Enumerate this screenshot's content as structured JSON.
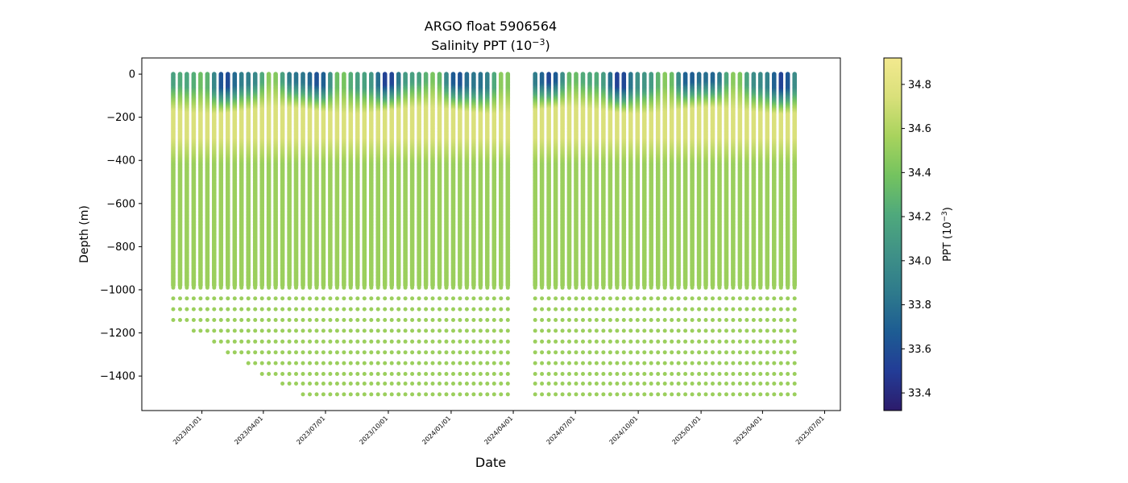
{
  "chart_data": {
    "type": "scatter",
    "title": "ARGO float 5906564",
    "subtitle": "Salinity PPT (10−3)",
    "subtitle_parts": {
      "prefix": "Salinity PPT (10",
      "exponent": "−3",
      "suffix": ")"
    },
    "xlabel": "Date",
    "ylabel": "Depth (m)",
    "ylim": [
      -1560,
      75
    ],
    "y_ticks": [
      0,
      -200,
      -400,
      -600,
      -800,
      -1000,
      -1200,
      -1400
    ],
    "y_tick_labels": [
      "0",
      "−200",
      "−400",
      "−600",
      "−800",
      "−1000",
      "−1200",
      "−1400"
    ],
    "x_range": [
      "2022-10-05",
      "2025-07-24"
    ],
    "x_ticks": [
      "2023-01-01",
      "2023-04-01",
      "2023-07-01",
      "2023-10-01",
      "2024-01-01",
      "2024-04-01",
      "2024-07-01",
      "2024-10-01",
      "2025-01-01",
      "2025-04-01",
      "2025-07-01"
    ],
    "x_tick_labels": [
      "2023/01/01",
      "2023/04/01",
      "2023/07/01",
      "2023/10/01",
      "2024/01/01",
      "2024/04/01",
      "2024/07/01",
      "2024/10/01",
      "2025/01/01",
      "2025/04/01",
      "2025/07/01"
    ],
    "profile_start": "2022-11-20",
    "profile_interval_days": 10,
    "profile_count": 92,
    "gap_profiles": [
      50,
      51,
      52
    ],
    "continuous_bottom_m": -980,
    "deep_sample_depths": [
      -990,
      -1040,
      -1090,
      -1140,
      -1190,
      -1240,
      -1290,
      -1340,
      -1390,
      -1435,
      -1485
    ],
    "surface_salinity": 34.0,
    "subsurface_salinity": 34.75,
    "deep_salinity": 34.52,
    "colorbar": {
      "label": "PPT (10−3)",
      "label_parts": {
        "prefix": "PPT (10",
        "exponent": "−3",
        "suffix": ")"
      },
      "range": [
        33.32,
        34.92
      ],
      "ticks": [
        33.4,
        33.6,
        33.8,
        34.0,
        34.2,
        34.4,
        34.6,
        34.8
      ],
      "tick_labels": [
        "33.4",
        "33.6",
        "33.8",
        "34.0",
        "34.2",
        "34.4",
        "34.6",
        "34.8"
      ],
      "colormap_stops": [
        "#2c1b6b",
        "#233c96",
        "#1d5c93",
        "#2e7a8c",
        "#3f9187",
        "#4fa97c",
        "#74c35f",
        "#a8d35d",
        "#d9e07a",
        "#f3e98f"
      ]
    }
  }
}
